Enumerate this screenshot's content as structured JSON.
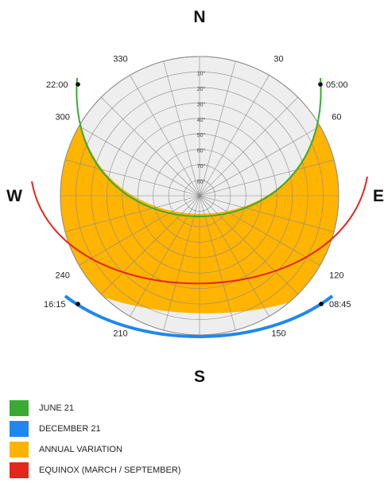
{
  "diagram": {
    "compass": {
      "north": "N",
      "south": "S",
      "east": "E",
      "west": "W"
    },
    "azimuth_labels": [
      {
        "text": "330",
        "az": 330
      },
      {
        "text": "30",
        "az": 30
      },
      {
        "text": "300",
        "az": 300
      },
      {
        "text": "60",
        "az": 60
      },
      {
        "text": "240",
        "az": 240
      },
      {
        "text": "120",
        "az": 120
      },
      {
        "text": "210",
        "az": 210
      },
      {
        "text": "150",
        "az": 150
      }
    ],
    "altitude_labels": [
      "10°",
      "20°",
      "30°",
      "40°",
      "50°",
      "60°",
      "70°",
      "80°"
    ],
    "time_markers": [
      {
        "text": "22:00",
        "curve": "june_21",
        "side": "west"
      },
      {
        "text": "05:00",
        "curve": "june_21",
        "side": "east"
      },
      {
        "text": "16:15",
        "curve": "december_21",
        "side": "west"
      },
      {
        "text": "08:45",
        "curve": "december_21",
        "side": "east"
      }
    ],
    "colors": {
      "june_21": "#3aaa35",
      "december_21": "#1e88f0",
      "annual_variation": "#ffb400",
      "equinox": "#e4261c",
      "sky_disc": "#eeeeee",
      "grid": "#8a8a8a"
    }
  },
  "legend": [
    {
      "label": "JUNE 21",
      "color": "#3aaa35"
    },
    {
      "label": "DECEMBER 21",
      "color": "#1e88f0"
    },
    {
      "label": "ANNUAL VARIATION",
      "color": "#ffb400"
    },
    {
      "label": "EQUINOX (MARCH / SEPTEMBER)",
      "color": "#e4261c"
    }
  ]
}
